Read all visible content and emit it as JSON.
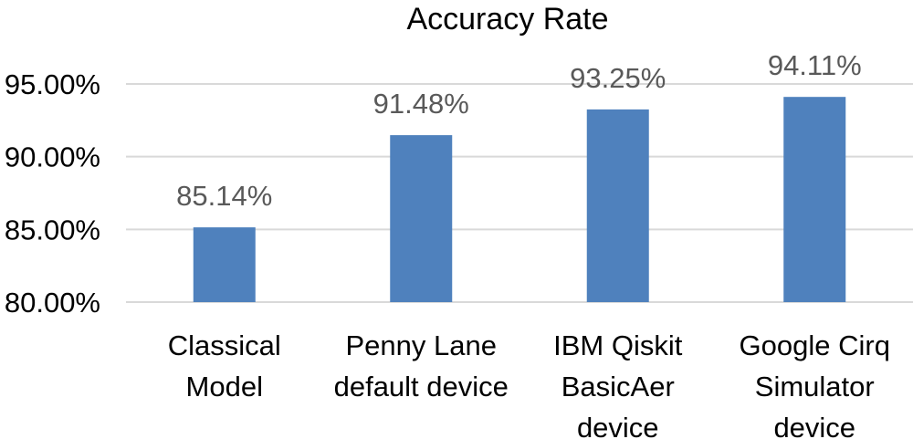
{
  "chart_data": {
    "type": "bar",
    "title": "Accuracy Rate",
    "xlabel": "",
    "ylabel": "",
    "categories": [
      [
        "Classical",
        "Model"
      ],
      [
        "Penny Lane",
        "default device"
      ],
      [
        "IBM Qiskit",
        "BasicAer",
        "device"
      ],
      [
        "Google Cirq",
        "Simulator",
        "device"
      ]
    ],
    "values": [
      85.14,
      91.48,
      93.25,
      94.11
    ],
    "data_labels": [
      "85.14%",
      "91.48%",
      "93.25%",
      "94.11%"
    ],
    "ylim": [
      80,
      95
    ],
    "yticks": [
      80,
      85,
      90,
      95
    ],
    "ytick_labels": [
      "80.00%",
      "85.00%",
      "90.00%",
      "95.00%"
    ],
    "grid": true,
    "legend": "none",
    "colors": {
      "bar": "#4f81bd",
      "grid": "#d9d9d9",
      "data_label": "#595959",
      "text": "#000000"
    }
  }
}
